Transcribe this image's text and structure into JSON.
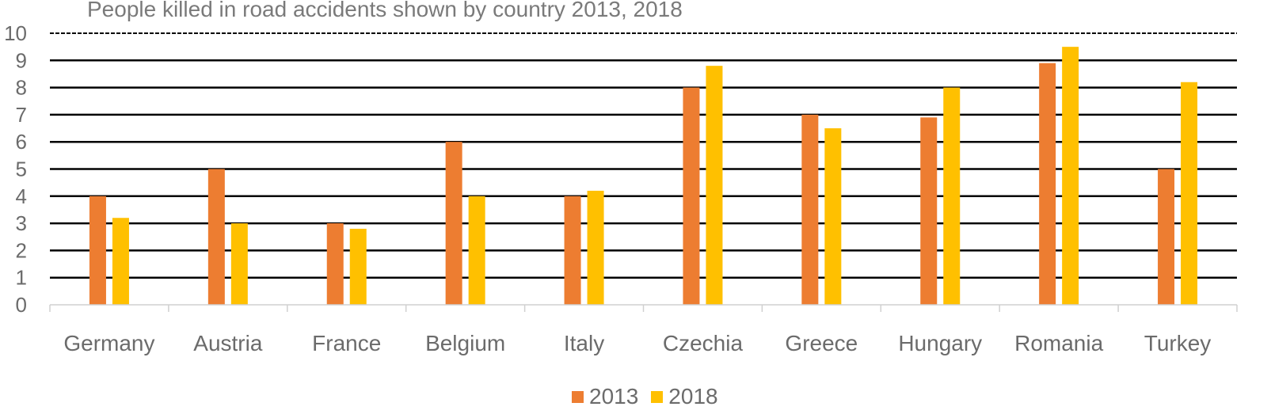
{
  "chart_data": {
    "type": "bar",
    "title": "People killed in road accidents shown by country 2013, 2018",
    "xlabel": "",
    "ylabel": "",
    "ylim": [
      0,
      10
    ],
    "yticks": [
      0,
      1,
      2,
      3,
      4,
      5,
      6,
      7,
      8,
      9,
      10
    ],
    "categories": [
      "Germany",
      "Austria",
      "France",
      "Belgium",
      "Italy",
      "Czechia",
      "Greece",
      "Hungary",
      "Romania",
      "Turkey"
    ],
    "series": [
      {
        "name": "2013",
        "color": "#ED7D31",
        "values": [
          4.0,
          5.0,
          3.0,
          6.0,
          4.0,
          8.0,
          7.0,
          6.9,
          8.9,
          5.0
        ]
      },
      {
        "name": "2018",
        "color": "#FFC000",
        "values": [
          3.2,
          3.0,
          2.8,
          4.0,
          4.2,
          8.8,
          6.5,
          8.0,
          9.5,
          8.2
        ]
      }
    ],
    "grid": true,
    "legend_position": "bottom"
  }
}
